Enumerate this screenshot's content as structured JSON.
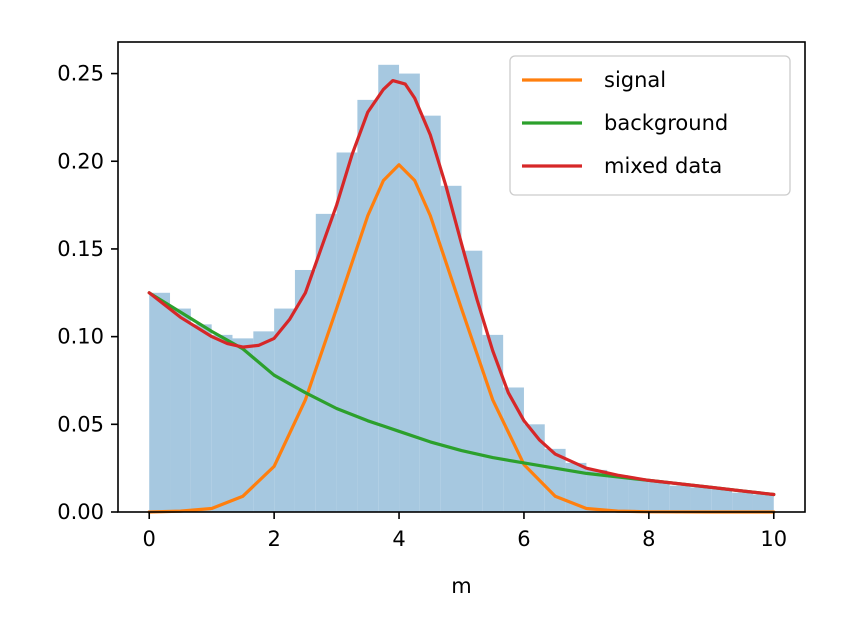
{
  "chart_data": {
    "type": "bar",
    "title": "",
    "xlabel": "m",
    "ylabel": "",
    "xlim": [
      -0.5,
      10.5
    ],
    "ylim": [
      0,
      0.268
    ],
    "xticks": [
      0,
      2,
      4,
      6,
      8,
      10
    ],
    "xtick_labels": [
      "0",
      "2",
      "4",
      "6",
      "8",
      "10"
    ],
    "yticks": [
      0.0,
      0.05,
      0.1,
      0.15,
      0.2,
      0.25
    ],
    "ytick_labels": [
      "0.00",
      "0.05",
      "0.10",
      "0.15",
      "0.20",
      "0.25"
    ],
    "grid": false,
    "legend_position": "top-right",
    "histogram": {
      "name": "",
      "color": "#a6c8e0",
      "bin_edges": [
        0.0,
        0.333,
        0.667,
        1.0,
        1.333,
        1.667,
        2.0,
        2.333,
        2.667,
        3.0,
        3.333,
        3.667,
        4.0,
        4.333,
        4.667,
        5.0,
        5.333,
        5.667,
        6.0,
        6.333,
        6.667,
        7.0,
        7.333,
        7.667,
        8.0,
        8.333,
        8.667,
        9.0,
        9.333,
        9.667,
        10.0
      ],
      "heights": [
        0.125,
        0.116,
        0.107,
        0.101,
        0.099,
        0.103,
        0.116,
        0.138,
        0.17,
        0.205,
        0.235,
        0.255,
        0.25,
        0.226,
        0.186,
        0.149,
        0.101,
        0.071,
        0.05,
        0.036,
        0.028,
        0.024,
        0.021,
        0.019,
        0.017,
        0.015,
        0.014,
        0.013,
        0.011,
        0.01
      ]
    },
    "series": [
      {
        "name": "signal",
        "color": "#ff7f0e",
        "x": [
          0.0,
          0.5,
          1.0,
          1.5,
          2.0,
          2.5,
          3.0,
          3.5,
          3.75,
          4.0,
          4.25,
          4.5,
          5.0,
          5.5,
          6.0,
          6.5,
          7.0,
          7.5,
          8.0,
          9.0,
          10.0
        ],
        "y": [
          0.0,
          0.0005,
          0.002,
          0.009,
          0.026,
          0.064,
          0.116,
          0.169,
          0.189,
          0.198,
          0.189,
          0.169,
          0.116,
          0.064,
          0.027,
          0.009,
          0.002,
          0.0005,
          0.0001,
          0.0,
          0.0
        ]
      },
      {
        "name": "background",
        "color": "#2ca02c",
        "x": [
          0.0,
          0.5,
          1.0,
          1.5,
          2.0,
          2.5,
          3.0,
          3.5,
          4.0,
          4.5,
          5.0,
          5.5,
          6.0,
          6.5,
          7.0,
          7.5,
          8.0,
          8.5,
          9.0,
          9.5,
          10.0
        ],
        "y": [
          0.125,
          0.114,
          0.103,
          0.093,
          0.078,
          0.068,
          0.059,
          0.052,
          0.046,
          0.04,
          0.035,
          0.031,
          0.028,
          0.025,
          0.022,
          0.02,
          0.018,
          0.016,
          0.014,
          0.012,
          0.01
        ]
      },
      {
        "name": "mixed data",
        "color": "#d62728",
        "x": [
          0.0,
          0.5,
          1.0,
          1.25,
          1.5,
          1.75,
          2.0,
          2.25,
          2.5,
          2.75,
          3.0,
          3.25,
          3.5,
          3.75,
          3.9,
          4.1,
          4.25,
          4.5,
          4.75,
          5.0,
          5.25,
          5.5,
          5.75,
          6.0,
          6.25,
          6.5,
          7.0,
          7.5,
          8.0,
          8.5,
          9.0,
          9.5,
          10.0
        ],
        "y": [
          0.125,
          0.111,
          0.1,
          0.096,
          0.094,
          0.095,
          0.099,
          0.11,
          0.125,
          0.15,
          0.175,
          0.204,
          0.228,
          0.241,
          0.246,
          0.244,
          0.236,
          0.215,
          0.186,
          0.153,
          0.121,
          0.092,
          0.068,
          0.052,
          0.041,
          0.033,
          0.025,
          0.021,
          0.018,
          0.016,
          0.014,
          0.012,
          0.01
        ]
      }
    ]
  }
}
